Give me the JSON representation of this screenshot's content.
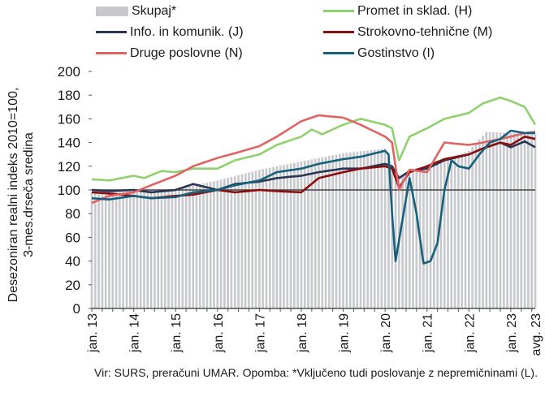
{
  "legend": {
    "skupaj": "Skupaj*",
    "h": "Promet in sklad. (H)",
    "j": "Info. in komunik. (J)",
    "m": "Strokovno-tehnične (M)",
    "n": "Druge poslovne (N)",
    "i": "Gostinstvo (I)"
  },
  "ylabel_line1": "Desezoniran realni indeks 2010=100,",
  "ylabel_line2": "3-mes.drseča sredina",
  "source_text": "Vir: SURS, preračuni UMAR. Opomba: *Vključeno tudi poslovanje z nepremičninami (L).",
  "colors": {
    "skupaj": "#c7c9cd",
    "h": "#8fd16e",
    "j": "#2a3654",
    "m": "#8b0d0d",
    "n": "#e06363",
    "i": "#17607b",
    "ref": "#444444"
  },
  "chart_data": {
    "type": "line",
    "ylim": [
      0,
      200
    ],
    "yticks": [
      0,
      20,
      40,
      60,
      80,
      100,
      120,
      140,
      160,
      180,
      200
    ],
    "x_start": "2013-01",
    "x_end": "2023-08",
    "xtick_labels": [
      "jan. 13",
      "jan. 14",
      "jan. 15",
      "jan. 16",
      "jan. 17",
      "jan. 18",
      "jan. 19",
      "jan. 20",
      "jan. 21",
      "jan. 22",
      "jan. 23",
      "avg. 23"
    ],
    "reference_line": 100,
    "series": [
      {
        "key": "skupaj",
        "name": "Skupaj*",
        "kind": "bar",
        "anchors": [
          [
            "2013-01",
            98
          ],
          [
            "2014-01",
            99
          ],
          [
            "2015-01",
            101
          ],
          [
            "2016-01",
            108
          ],
          [
            "2017-01",
            117
          ],
          [
            "2018-01",
            124
          ],
          [
            "2019-01",
            131
          ],
          [
            "2020-01",
            135
          ],
          [
            "2020-04",
            112
          ],
          [
            "2020-06",
            113
          ],
          [
            "2020-09",
            118
          ],
          [
            "2021-01",
            120
          ],
          [
            "2021-06",
            125
          ],
          [
            "2022-01",
            133
          ],
          [
            "2022-06",
            149
          ],
          [
            "2023-01",
            148
          ],
          [
            "2023-08",
            147
          ]
        ]
      },
      {
        "key": "h",
        "name": "Promet in sklad. (H)",
        "kind": "line",
        "anchors": [
          [
            "2013-01",
            109
          ],
          [
            "2013-06",
            108
          ],
          [
            "2014-01",
            112
          ],
          [
            "2014-04",
            110
          ],
          [
            "2014-09",
            116
          ],
          [
            "2015-01",
            115
          ],
          [
            "2015-06",
            118
          ],
          [
            "2016-01",
            118
          ],
          [
            "2016-06",
            125
          ],
          [
            "2017-01",
            130
          ],
          [
            "2017-06",
            138
          ],
          [
            "2018-01",
            145
          ],
          [
            "2018-04",
            151
          ],
          [
            "2018-07",
            147
          ],
          [
            "2019-01",
            155
          ],
          [
            "2019-06",
            160
          ],
          [
            "2020-01",
            155
          ],
          [
            "2020-03",
            152
          ],
          [
            "2020-05",
            125
          ],
          [
            "2020-08",
            145
          ],
          [
            "2021-01",
            152
          ],
          [
            "2021-06",
            160
          ],
          [
            "2022-01",
            165
          ],
          [
            "2022-05",
            173
          ],
          [
            "2022-10",
            178
          ],
          [
            "2023-01",
            175
          ],
          [
            "2023-05",
            170
          ],
          [
            "2023-08",
            155
          ]
        ]
      },
      {
        "key": "j",
        "name": "Info. in komunik. (J)",
        "kind": "line",
        "anchors": [
          [
            "2013-01",
            100
          ],
          [
            "2013-06",
            99
          ],
          [
            "2014-01",
            100
          ],
          [
            "2014-06",
            98
          ],
          [
            "2015-01",
            100
          ],
          [
            "2015-06",
            105
          ],
          [
            "2016-01",
            100
          ],
          [
            "2016-06",
            105
          ],
          [
            "2017-01",
            107
          ],
          [
            "2017-06",
            110
          ],
          [
            "2018-01",
            112
          ],
          [
            "2018-06",
            115
          ],
          [
            "2019-01",
            118
          ],
          [
            "2019-06",
            118
          ],
          [
            "2020-01",
            122
          ],
          [
            "2020-03",
            120
          ],
          [
            "2020-05",
            110
          ],
          [
            "2020-08",
            116
          ],
          [
            "2021-01",
            118
          ],
          [
            "2021-06",
            125
          ],
          [
            "2022-01",
            130
          ],
          [
            "2022-05",
            135
          ],
          [
            "2022-10",
            140
          ],
          [
            "2023-01",
            136
          ],
          [
            "2023-05",
            141
          ],
          [
            "2023-08",
            136
          ]
        ]
      },
      {
        "key": "m",
        "name": "Strokovno-tehnične (M)",
        "kind": "line",
        "anchors": [
          [
            "2013-01",
            98
          ],
          [
            "2013-06",
            97
          ],
          [
            "2014-01",
            95
          ],
          [
            "2014-06",
            93
          ],
          [
            "2015-01",
            95
          ],
          [
            "2015-06",
            96
          ],
          [
            "2016-01",
            100
          ],
          [
            "2016-06",
            98
          ],
          [
            "2017-01",
            100
          ],
          [
            "2017-06",
            99
          ],
          [
            "2018-01",
            98
          ],
          [
            "2018-06",
            110
          ],
          [
            "2019-01",
            115
          ],
          [
            "2019-06",
            118
          ],
          [
            "2020-01",
            120
          ],
          [
            "2020-03",
            118
          ],
          [
            "2020-05",
            102
          ],
          [
            "2020-08",
            115
          ],
          [
            "2021-01",
            120
          ],
          [
            "2021-06",
            126
          ],
          [
            "2022-01",
            130
          ],
          [
            "2022-05",
            135
          ],
          [
            "2022-10",
            140
          ],
          [
            "2023-01",
            138
          ],
          [
            "2023-05",
            145
          ],
          [
            "2023-08",
            143
          ]
        ]
      },
      {
        "key": "n",
        "name": "Druge poslovne (N)",
        "kind": "line",
        "anchors": [
          [
            "2013-01",
            89
          ],
          [
            "2013-06",
            95
          ],
          [
            "2014-01",
            98
          ],
          [
            "2014-06",
            104
          ],
          [
            "2015-01",
            112
          ],
          [
            "2015-06",
            120
          ],
          [
            "2016-01",
            127
          ],
          [
            "2016-06",
            131
          ],
          [
            "2017-01",
            137
          ],
          [
            "2017-06",
            145
          ],
          [
            "2018-01",
            158
          ],
          [
            "2018-06",
            163
          ],
          [
            "2019-01",
            161
          ],
          [
            "2019-06",
            155
          ],
          [
            "2020-01",
            145
          ],
          [
            "2020-03",
            140
          ],
          [
            "2020-05",
            100
          ],
          [
            "2020-08",
            117
          ],
          [
            "2021-01",
            115
          ],
          [
            "2021-06",
            140
          ],
          [
            "2022-01",
            138
          ],
          [
            "2022-05",
            140
          ],
          [
            "2022-10",
            143
          ],
          [
            "2023-01",
            145
          ],
          [
            "2023-05",
            148
          ],
          [
            "2023-08",
            149
          ]
        ]
      },
      {
        "key": "i",
        "name": "Gostinstvo (I)",
        "kind": "line",
        "anchors": [
          [
            "2013-01",
            93
          ],
          [
            "2013-06",
            92
          ],
          [
            "2014-01",
            95
          ],
          [
            "2014-06",
            93
          ],
          [
            "2015-01",
            94
          ],
          [
            "2015-06",
            98
          ],
          [
            "2016-01",
            100
          ],
          [
            "2016-06",
            104
          ],
          [
            "2017-01",
            108
          ],
          [
            "2017-06",
            115
          ],
          [
            "2018-01",
            118
          ],
          [
            "2018-06",
            122
          ],
          [
            "2019-01",
            126
          ],
          [
            "2019-06",
            128
          ],
          [
            "2020-01",
            133
          ],
          [
            "2020-02",
            130
          ],
          [
            "2020-03",
            80
          ],
          [
            "2020-04",
            40
          ],
          [
            "2020-06",
            75
          ],
          [
            "2020-08",
            110
          ],
          [
            "2020-10",
            80
          ],
          [
            "2020-12",
            38
          ],
          [
            "2021-02",
            40
          ],
          [
            "2021-04",
            55
          ],
          [
            "2021-06",
            100
          ],
          [
            "2021-08",
            125
          ],
          [
            "2021-10",
            120
          ],
          [
            "2022-01",
            118
          ],
          [
            "2022-04",
            130
          ],
          [
            "2022-07",
            140
          ],
          [
            "2022-10",
            143
          ],
          [
            "2023-01",
            150
          ],
          [
            "2023-05",
            148
          ],
          [
            "2023-08",
            148
          ]
        ]
      }
    ]
  }
}
